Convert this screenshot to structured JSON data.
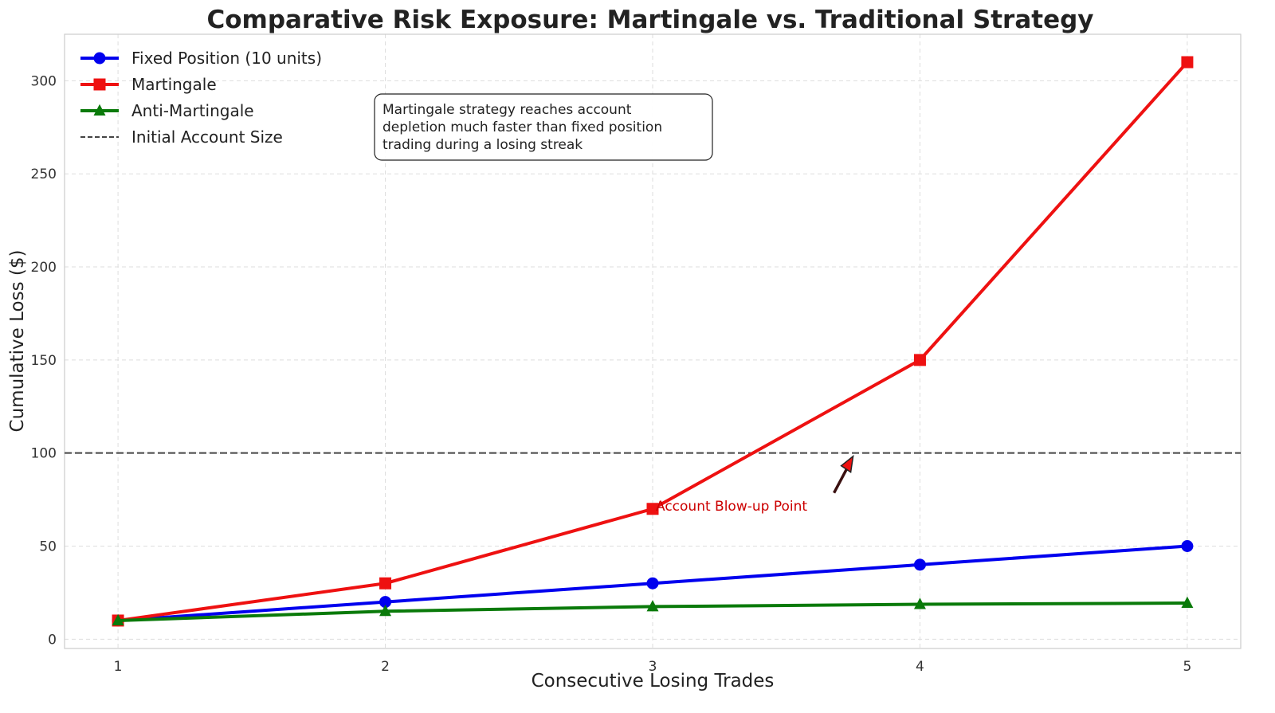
{
  "chart_data": {
    "type": "line",
    "title": "Comparative Risk Exposure: Martingale vs. Traditional Strategy",
    "xlabel": "Consecutive Losing Trades",
    "ylabel": "Cumulative Loss ($)",
    "x": [
      1,
      2,
      3,
      4,
      5
    ],
    "xlim": [
      0.8,
      5.2
    ],
    "ylim": [
      -5,
      325
    ],
    "xticks": [
      1,
      2,
      3,
      4,
      5
    ],
    "yticks": [
      0,
      50,
      100,
      150,
      200,
      250,
      300
    ],
    "grid": true,
    "legend_placement": "upper-left",
    "series": [
      {
        "name": "Fixed Position (10 units)",
        "values": [
          10,
          20,
          30,
          40,
          50
        ],
        "color": "#0000ee",
        "marker": "circle"
      },
      {
        "name": "Martingale",
        "values": [
          10,
          30,
          70,
          150,
          310
        ],
        "color": "#ee1111",
        "marker": "square"
      },
      {
        "name": "Anti-Martingale",
        "values": [
          10,
          15,
          17.5,
          18.75,
          19.375
        ],
        "color": "#0a7a0a",
        "marker": "triangle"
      }
    ],
    "hlines": [
      {
        "name": "Initial Account Size",
        "y": 100,
        "color": "#444444",
        "style": "dashed"
      }
    ],
    "annotations": [
      {
        "text": "Account Blow-up Point",
        "xy": [
          3.75,
          100
        ],
        "xytext": [
          3.0,
          70
        ],
        "color": "#cc0000"
      },
      {
        "text": "Martingale strategy reaches account\ndepletion much faster than fixed position\ntrading during a losing streak"
      }
    ]
  }
}
